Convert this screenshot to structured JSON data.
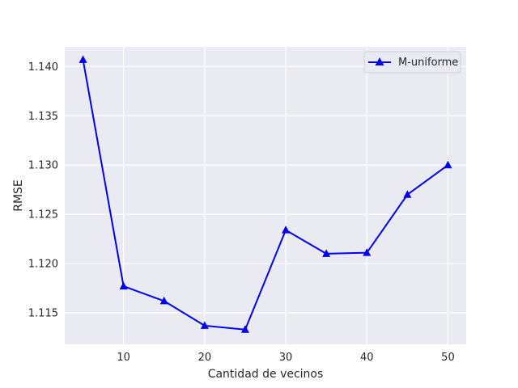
{
  "chart_data": {
    "type": "line",
    "title": "",
    "xlabel": "Cantidad de vecinos",
    "ylabel": "RMSE",
    "xlim": [
      2.75,
      52.25
    ],
    "ylim": [
      1.1118,
      1.142
    ],
    "xticks": [
      10,
      20,
      30,
      40,
      50
    ],
    "yticks": [
      1.115,
      1.12,
      1.125,
      1.13,
      1.135,
      1.14
    ],
    "grid": true,
    "legend": "top-right",
    "series": [
      {
        "name": "M-uniforme",
        "color": "#0000ee",
        "marker": "triangle-up",
        "x": [
          5,
          10,
          15,
          20,
          25,
          30,
          35,
          40,
          45,
          50
        ],
        "y": [
          1.1407,
          1.1177,
          1.1162,
          1.1137,
          1.1133,
          1.1234,
          1.121,
          1.1211,
          1.127,
          1.13
        ]
      }
    ]
  },
  "colors": {
    "plot_background": "#eaeaf2",
    "grid": "#ffffff",
    "figure_background": "#ffffff"
  }
}
